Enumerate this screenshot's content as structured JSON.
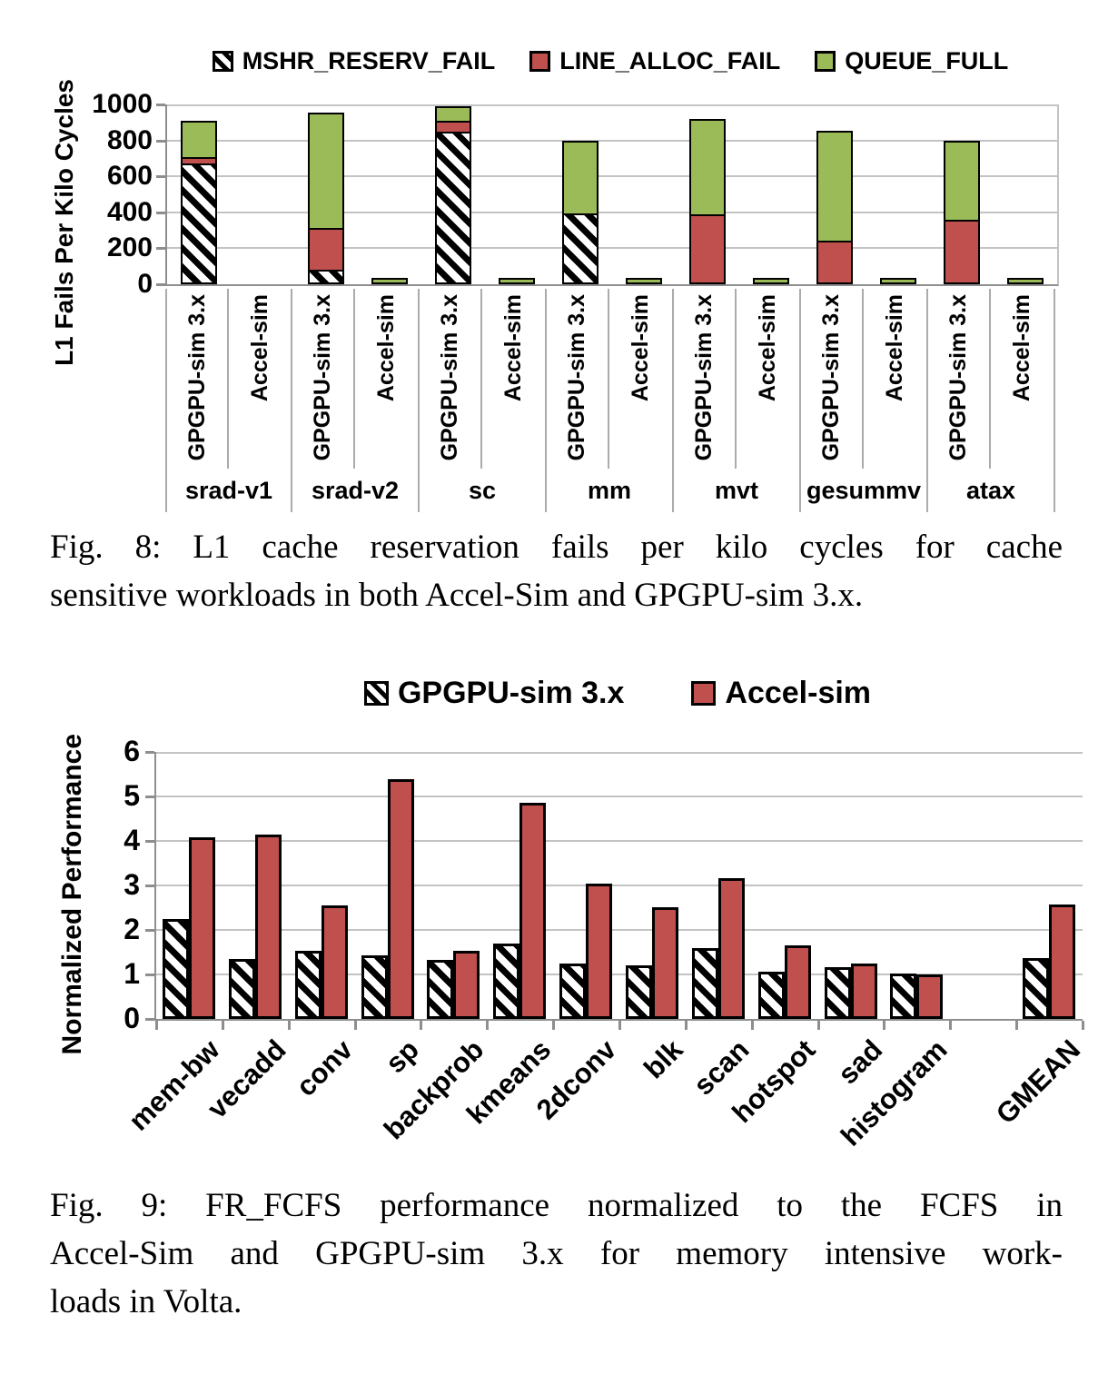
{
  "colors": {
    "line_alloc_fail": "#C0504D",
    "queue_full": "#9BBB59",
    "hatch_fg": "#000000",
    "hatch_bg": "#FFFFFF",
    "gridline": "#C3C3C3",
    "axis_line": "#8E8E8E",
    "text": "#000000"
  },
  "captions": {
    "fig8_lines": [
      "Fig. 8: L1 cache reservation fails per kilo cycles for cache",
      "sensitive workloads in both Accel-Sim and GPGPU-sim 3.x."
    ],
    "fig9_lines": [
      "Fig. 9: FR_FCFS performance normalized to the FCFS in",
      "Accel-Sim and GPGPU-sim 3.x for memory intensive work-",
      "loads in Volta."
    ]
  },
  "chart_data": [
    {
      "id": "fig8",
      "type": "bar",
      "stacked": true,
      "title": "",
      "ylabel": "L1 Fails Per Kilo Cycles",
      "xlabel": "",
      "ylim": [
        0,
        1000
      ],
      "yticks": [
        0,
        200,
        400,
        600,
        800,
        1000
      ],
      "grid": true,
      "legend_position": "top",
      "groups": [
        "srad-v1",
        "srad-v2",
        "sc",
        "mm",
        "mvt",
        "gesummv",
        "atax"
      ],
      "bar_variants": [
        "GPGPU-sim 3.x",
        "Accel-sim"
      ],
      "series": [
        {
          "name": "MSHR_RESERV_FAIL",
          "style": "hatch",
          "values": [
            [
              660,
              0
            ],
            [
              70,
              0
            ],
            [
              840,
              0
            ],
            [
              385,
              0
            ],
            [
              0,
              0
            ],
            [
              0,
              0
            ],
            [
              0,
              0
            ]
          ]
        },
        {
          "name": "LINE_ALLOC_FAIL",
          "style": "red",
          "values": [
            [
              30,
              0
            ],
            [
              230,
              0
            ],
            [
              60,
              0
            ],
            [
              0,
              0
            ],
            [
              380,
              0
            ],
            [
              230,
              0
            ],
            [
              350,
              0
            ]
          ]
        },
        {
          "name": "QUEUE_FULL",
          "style": "green",
          "values": [
            [
              210,
              0
            ],
            [
              650,
              30
            ],
            [
              90,
              30
            ],
            [
              415,
              30
            ],
            [
              540,
              30
            ],
            [
              620,
              30
            ],
            [
              450,
              30
            ]
          ]
        }
      ]
    },
    {
      "id": "fig9",
      "type": "bar",
      "stacked": false,
      "title": "",
      "ylabel": "Normalized Performance",
      "xlabel": "",
      "ylim": [
        0,
        6
      ],
      "yticks": [
        0,
        1,
        2,
        3,
        4,
        5,
        6
      ],
      "grid": true,
      "legend_position": "top",
      "categories": [
        "mem-bw",
        "vecadd",
        "conv",
        "sp",
        "backprob",
        "kmeans",
        "2dconv",
        "blk",
        "scan",
        "hotspot",
        "sad",
        "histogram",
        "GMEAN"
      ],
      "gap_slot_before_last": true,
      "series": [
        {
          "name": "GPGPU-sim 3.x",
          "style": "hatch",
          "values": [
            2.25,
            1.35,
            1.53,
            1.43,
            1.32,
            1.69,
            1.24,
            1.2,
            1.59,
            1.06,
            1.16,
            1.02,
            1.37
          ]
        },
        {
          "name": "Accel-sim",
          "style": "red",
          "values": [
            4.08,
            4.15,
            2.55,
            5.38,
            1.53,
            4.85,
            3.05,
            2.51,
            3.16,
            1.65,
            1.24,
            1.0,
            2.57
          ]
        }
      ]
    }
  ]
}
